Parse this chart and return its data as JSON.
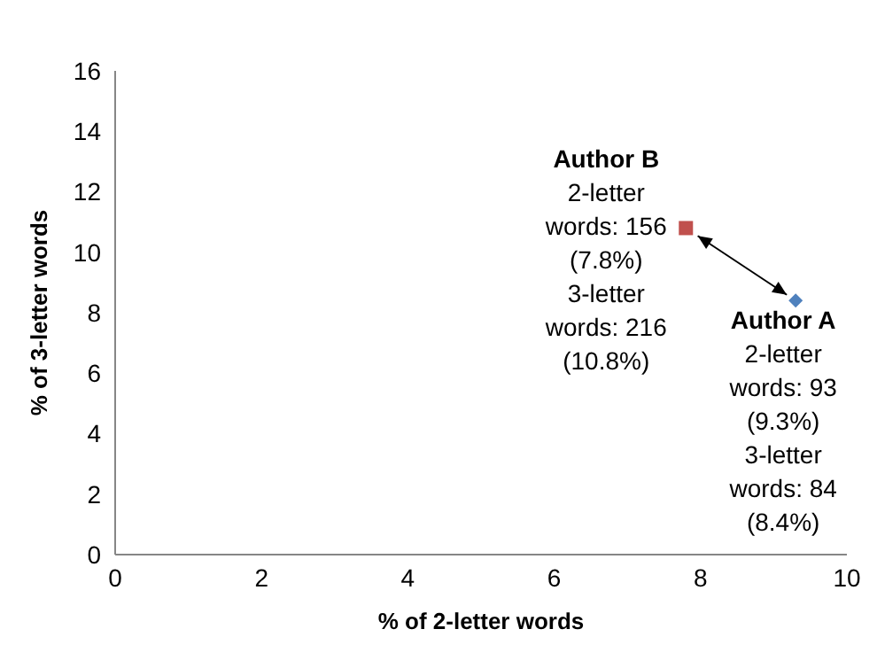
{
  "chart_data": {
    "type": "scatter",
    "xlabel": "% of 2-letter words",
    "ylabel": "% of 3-letter words",
    "xlim": [
      0,
      10
    ],
    "xticks": [
      0,
      2,
      4,
      6,
      8,
      10
    ],
    "ylim": [
      0,
      16
    ],
    "yticks": [
      0,
      2,
      4,
      6,
      8,
      10,
      12,
      14,
      16
    ],
    "grid": false,
    "legend": false,
    "series": [
      {
        "name": "Author A",
        "color": "#4f81bd",
        "marker": "diamond",
        "x": [
          9.3
        ],
        "values": [
          8.4
        ]
      },
      {
        "name": "Author B",
        "color": "#c0504d",
        "marker": "square",
        "x": [
          7.8
        ],
        "values": [
          10.8
        ]
      }
    ],
    "annotations": [
      {
        "text": "2-letter words: 93 (9.3%) 3-letter words: 84 (8.4%)",
        "x": 9.3,
        "y": 8.4
      },
      {
        "text": "2-letter words: 156 (7.8%) 3-letter words: 216 (10.8%)",
        "x": 7.8,
        "y": 10.8
      }
    ]
  }
}
